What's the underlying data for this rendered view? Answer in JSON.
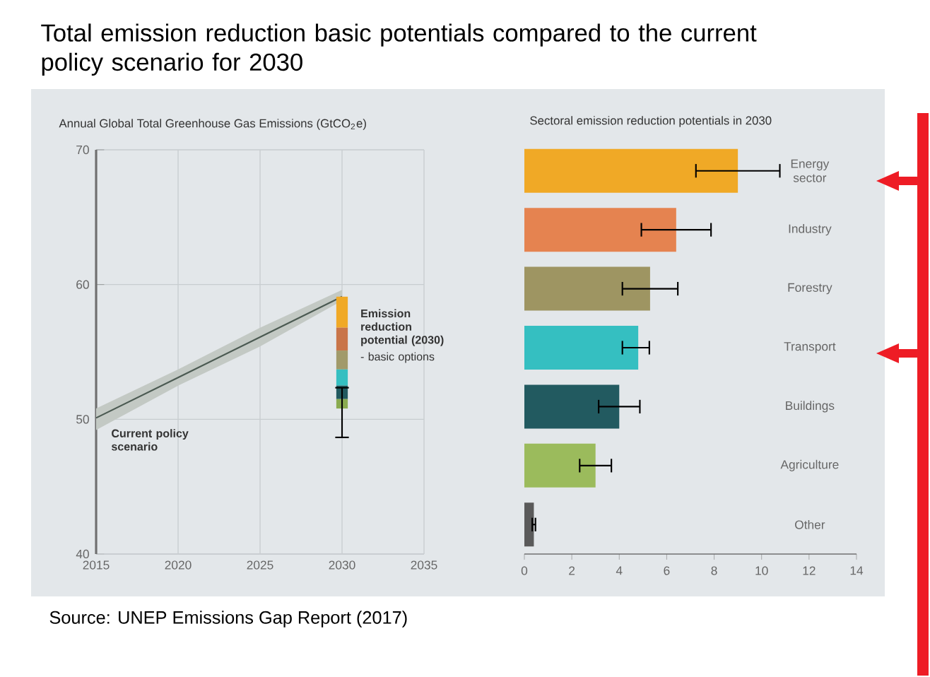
{
  "chart_data": [
    {
      "type": "line",
      "title": "Total emission reduction basic potentials compared to the current policy scenario for 2030",
      "subtitle": "Annual Global Total Greenhouse Gas Emissions (GtCO$_{2}$e)",
      "xlim": [
        2015,
        2035
      ],
      "ylim": [
        40,
        70
      ],
      "xticks": [
        2015,
        2020,
        2025,
        2030,
        2035
      ],
      "yticks": [
        40,
        50,
        60,
        70
      ],
      "grid": true,
      "series": [
        {
          "type": "line",
          "color": "#4b5a52",
          "x": [
            2015,
            2020,
            2025,
            2030
          ],
          "values": [
            50.1,
            53.1,
            56.1,
            59.1
          ],
          "lower": [
            49.2,
            52.5,
            55.4,
            58.8
          ],
          "upper": [
            50.8,
            53.7,
            56.8,
            59.6
          ]
        },
        {
          "type": "bar",
          "color": "#f0a926",
          "x": [
            2030
          ],
          "base": [
            56.8
          ],
          "values": [
            2.3
          ]
        },
        {
          "type": "bar",
          "color": "#c97549",
          "x": [
            2030
          ],
          "base": [
            55.1
          ],
          "values": [
            1.7
          ]
        },
        {
          "type": "bar",
          "color": "#a19a6a",
          "x": [
            2030
          ],
          "base": [
            53.7
          ],
          "values": [
            1.4
          ]
        },
        {
          "type": "bar",
          "color": "#35bfc1",
          "x": [
            2030
          ],
          "base": [
            52.5
          ],
          "values": [
            1.2
          ]
        },
        {
          "type": "bar",
          "color": "#225a60",
          "x": [
            2030
          ],
          "base": [
            51.5
          ],
          "values": [
            1.0
          ]
        },
        {
          "type": "bar",
          "color": "#8aab50",
          "x": [
            2030
          ],
          "base": [
            50.8
          ],
          "values": [
            0.7
          ],
          "errors": [
            [
              48.6,
              52.4
            ]
          ]
        }
      ],
      "annotations": [
        "Emission reduction potential (2030)",
        "- basic options",
        "Current policy scenario",
        "Source: UNEP Emissions Gap Report (2017)"
      ]
    },
    {
      "type": "bar",
      "orientation": "horizontal",
      "title": "Sectoral emission reduction potentials in 2030",
      "categories": [
        "Energy sector",
        "Industry",
        "Forestry",
        "Transport",
        "Buildings",
        "Agriculture",
        "Other"
      ],
      "values": [
        9.0,
        6.4,
        5.3,
        4.8,
        4.0,
        3.0,
        0.4
      ],
      "colors": [
        "#f0a926",
        "#e58350",
        "#9e9562",
        "#35bfc1",
        "#225a60",
        "#9bbb5c",
        "#5a5a5a"
      ],
      "errors": [
        [
          7.2,
          10.8
        ],
        [
          4.9,
          7.9
        ],
        [
          4.1,
          6.5
        ],
        [
          4.1,
          5.3
        ],
        [
          3.1,
          4.9
        ],
        [
          2.3,
          3.7
        ],
        [
          0.3,
          0.5
        ]
      ],
      "xlim": [
        0,
        14
      ],
      "xticks": [
        0,
        2,
        4,
        6,
        8,
        10,
        12,
        14
      ]
    }
  ]
}
